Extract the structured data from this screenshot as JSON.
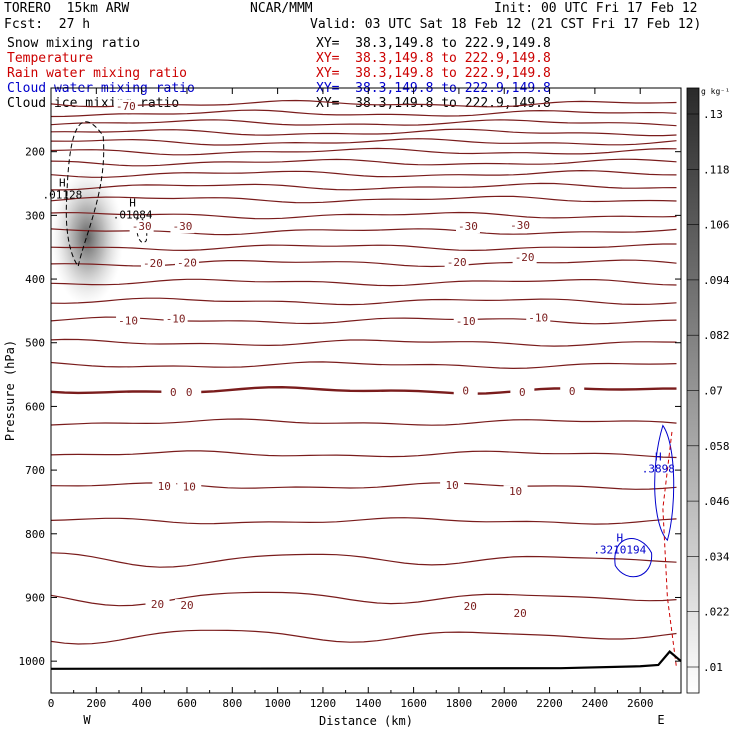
{
  "header": {
    "model": "TORERO  15km ARW",
    "center": "NCAR/MMM",
    "init": "Init: 00 UTC Fri 17 Feb 12",
    "fcst": "Fcst:  27 h",
    "valid": "Valid: 03 UTC Sat 18 Feb 12 (21 CST Fri 17 Feb 12)"
  },
  "fields": [
    {
      "name": "Snow mixing ratio",
      "xy": "XY=  38.3,149.8 to 222.9,149.8",
      "color": "#000000"
    },
    {
      "name": "Temperature",
      "xy": "XY=  38.3,149.8 to 222.9,149.8",
      "color": "#cc0000"
    },
    {
      "name": "Rain water mixing ratio",
      "xy": "XY=  38.3,149.8 to 222.9,149.8",
      "color": "#cc0000"
    },
    {
      "name": "Cloud water mixing ratio",
      "xy": "XY=  38.3,149.8 to 222.9,149.8",
      "color": "#0000cc"
    },
    {
      "name": "Cloud ice mixing ratio",
      "xy": "XY=  38.3,149.8 to 222.9,149.8",
      "color": "#000000"
    }
  ],
  "chart_data": {
    "type": "cross-section contour",
    "xlabel": "Distance (km)",
    "ylabel": "Pressure (hPa)",
    "xlim": [
      0,
      2780
    ],
    "ylim": [
      1050,
      100
    ],
    "x_ticks": [
      0,
      200,
      400,
      600,
      800,
      1000,
      1200,
      1400,
      1600,
      1800,
      2000,
      2200,
      2400,
      2600
    ],
    "y_ticks": [
      200,
      300,
      400,
      500,
      600,
      700,
      800,
      900,
      1000
    ],
    "x_end_labels": {
      "left": "W",
      "right": "E"
    },
    "colorbar": {
      "unit": "g kg⁻¹",
      "ticks": [
        ".01",
        ".022",
        ".034",
        ".046",
        ".058",
        ".07",
        ".082",
        ".094",
        ".106",
        ".118",
        ".13"
      ]
    },
    "temperature_labels": [
      {
        "x": 400,
        "p": 317,
        "text": "-30"
      },
      {
        "x": 580,
        "p": 317,
        "text": "-30"
      },
      {
        "x": 1840,
        "p": 317,
        "text": "-30"
      },
      {
        "x": 2070,
        "p": 315,
        "text": "-30"
      },
      {
        "x": 600,
        "p": 374,
        "text": "-20"
      },
      {
        "x": 450,
        "p": 375,
        "text": "-20"
      },
      {
        "x": 1790,
        "p": 373,
        "text": "-20"
      },
      {
        "x": 2090,
        "p": 365,
        "text": "-20"
      },
      {
        "x": 340,
        "p": 465,
        "text": "-10"
      },
      {
        "x": 550,
        "p": 462,
        "text": "-10"
      },
      {
        "x": 1830,
        "p": 466,
        "text": "-10"
      },
      {
        "x": 2150,
        "p": 460,
        "text": "-10"
      },
      {
        "x": 540,
        "p": 577,
        "text": "0"
      },
      {
        "x": 610,
        "p": 577,
        "text": "0"
      },
      {
        "x": 1830,
        "p": 575,
        "text": "0"
      },
      {
        "x": 2080,
        "p": 577,
        "text": "0"
      },
      {
        "x": 2300,
        "p": 576,
        "text": "0"
      },
      {
        "x": 500,
        "p": 725,
        "text": "10"
      },
      {
        "x": 610,
        "p": 726,
        "text": "10"
      },
      {
        "x": 1770,
        "p": 723,
        "text": "10"
      },
      {
        "x": 2050,
        "p": 733,
        "text": "10"
      },
      {
        "x": 470,
        "p": 910,
        "text": "20"
      },
      {
        "x": 600,
        "p": 912,
        "text": "20"
      },
      {
        "x": 1850,
        "p": 913,
        "text": "20"
      },
      {
        "x": 2070,
        "p": 924,
        "text": "20"
      },
      {
        "x": 330,
        "p": 128,
        "text": "-70"
      }
    ],
    "extrema_labels": [
      {
        "x": 50,
        "p": 255,
        "text": "H",
        "sub": ".01128",
        "color": "#000000"
      },
      {
        "x": 360,
        "p": 286,
        "text": "H",
        "sub": ".01084",
        "color": "#000000"
      },
      {
        "x": 2680,
        "p": 685,
        "text": "H",
        "sub": ".3898",
        "color": "#0000cc"
      },
      {
        "x": 2510,
        "p": 812,
        "text": "H",
        "sub": ".3210194",
        "color": "#0000cc"
      }
    ]
  }
}
